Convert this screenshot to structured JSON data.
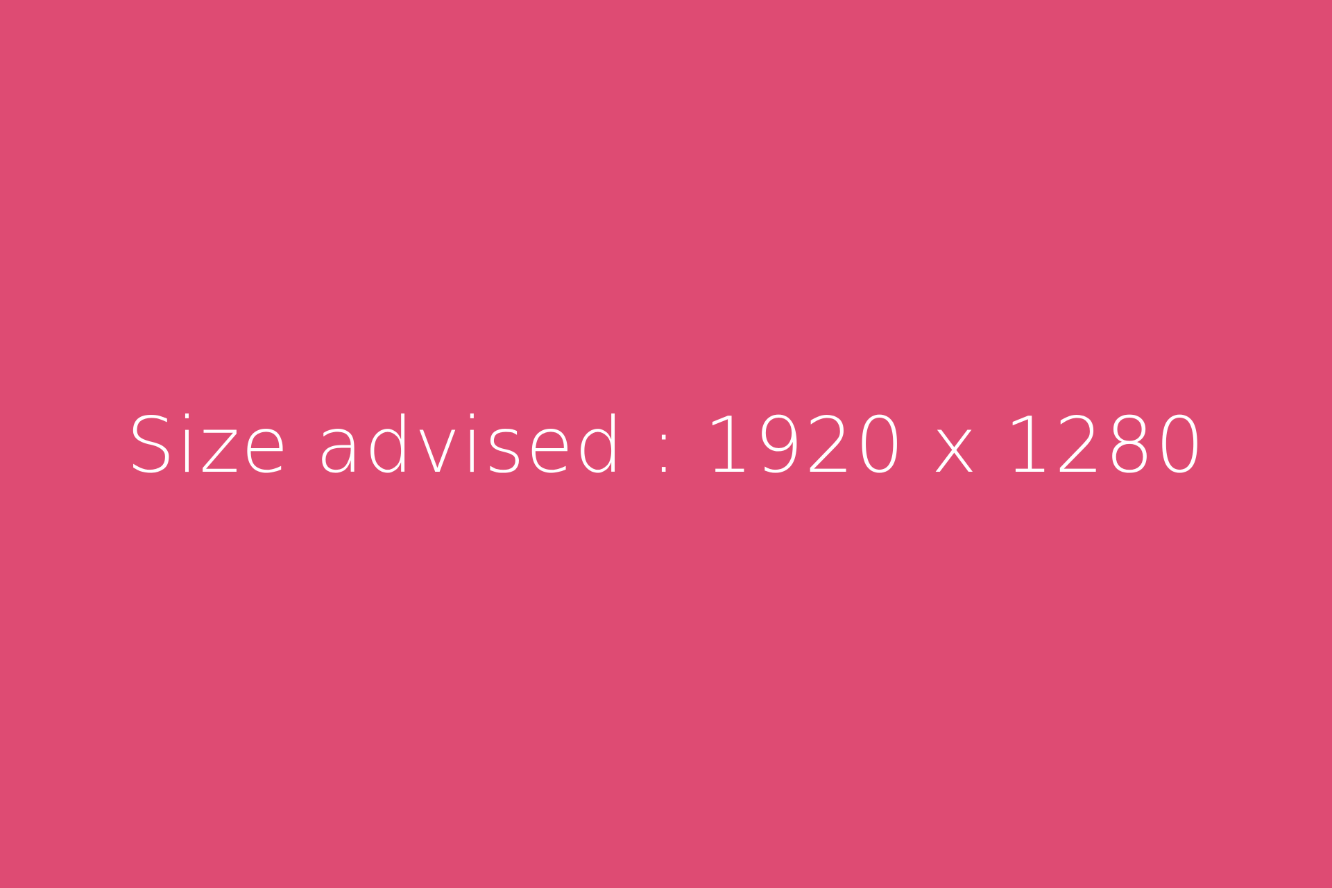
{
  "placeholder": {
    "text": "Size advised : 1920 x 1280"
  },
  "colors": {
    "background": "#DE4B73",
    "text": "#FFFFFF"
  }
}
